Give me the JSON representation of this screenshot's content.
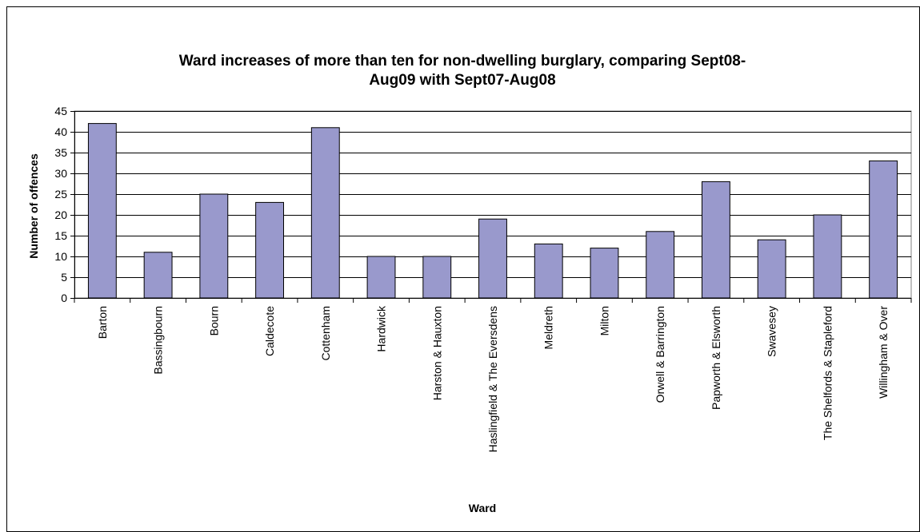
{
  "chart_data": {
    "type": "bar",
    "title": "Ward increases of more than ten for non-dwelling burglary, comparing Sept08-Aug09 with Sept07-Aug08",
    "title_lines": [
      "Ward increases of more than ten for non-dwelling burglary, comparing Sept08-",
      "Aug09 with Sept07-Aug08"
    ],
    "xlabel": "Ward",
    "ylabel": "Number of offences",
    "ylim": [
      0,
      45
    ],
    "y_ticks": [
      0,
      5,
      10,
      15,
      20,
      25,
      30,
      35,
      40,
      45
    ],
    "grid": true,
    "legend": "none",
    "bar_color": "#9999CC",
    "categories": [
      "Barton",
      "Bassingbourn",
      "Bourn",
      "Caldecote",
      "Cottenham",
      "Hardwick",
      "Harston & Hauxton",
      "Haslingfield & The Eversdens",
      "Meldreth",
      "Milton",
      "Orwell & Barrington",
      "Papworth & Elsworth",
      "Swavesey",
      "The Shelfords & Stapleford",
      "Willingham & Over"
    ],
    "values": [
      42,
      11,
      25,
      23,
      41,
      10,
      10,
      19,
      13,
      12,
      16,
      28,
      14,
      20,
      33
    ]
  }
}
